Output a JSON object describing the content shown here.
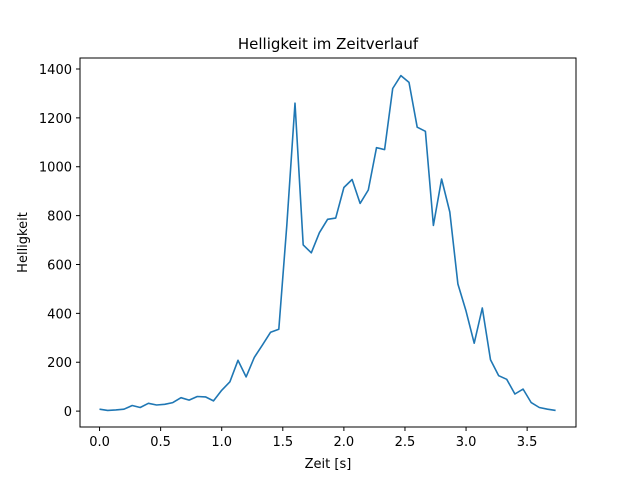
{
  "chart_data": {
    "type": "line",
    "title": "Helligkeit im Zeitverlauf",
    "xlabel": "Zeit [s]",
    "ylabel": "Helligkeit",
    "xlim": [
      -0.16,
      3.9
    ],
    "ylim": [
      -65,
      1445
    ],
    "x_ticks": [
      0.0,
      0.5,
      1.0,
      1.5,
      2.0,
      2.5,
      3.0,
      3.5
    ],
    "x_tick_labels": [
      "0.0",
      "0.5",
      "1.0",
      "1.5",
      "2.0",
      "2.5",
      "3.0",
      "3.5"
    ],
    "y_ticks": [
      0,
      200,
      400,
      600,
      800,
      1000,
      1200,
      1400
    ],
    "y_tick_labels": [
      "0",
      "200",
      "400",
      "600",
      "800",
      "1000",
      "1200",
      "1400"
    ],
    "grid": false,
    "series": [
      {
        "color": "#1f77b4",
        "x": [
          0.0,
          0.067,
          0.133,
          0.2,
          0.267,
          0.333,
          0.4,
          0.467,
          0.533,
          0.6,
          0.667,
          0.733,
          0.8,
          0.867,
          0.933,
          1.0,
          1.067,
          1.133,
          1.2,
          1.267,
          1.333,
          1.4,
          1.467,
          1.533,
          1.6,
          1.667,
          1.733,
          1.8,
          1.867,
          1.933,
          2.0,
          2.067,
          2.133,
          2.2,
          2.267,
          2.333,
          2.4,
          2.467,
          2.533,
          2.6,
          2.667,
          2.733,
          2.8,
          2.867,
          2.933,
          3.0,
          3.067,
          3.133,
          3.2,
          3.267,
          3.333,
          3.4,
          3.467,
          3.533,
          3.6,
          3.667,
          3.733
        ],
        "y": [
          8,
          3,
          5,
          8,
          23,
          15,
          32,
          25,
          28,
          35,
          55,
          45,
          60,
          58,
          42,
          85,
          120,
          208,
          140,
          220,
          270,
          323,
          335,
          760,
          1260,
          680,
          648,
          730,
          785,
          790,
          915,
          948,
          850,
          905,
          1078,
          1070,
          1320,
          1373,
          1345,
          1162,
          1145,
          760,
          950,
          815,
          520,
          410,
          278,
          422,
          210,
          145,
          130,
          70,
          90,
          35,
          15,
          8,
          3
        ]
      }
    ]
  }
}
